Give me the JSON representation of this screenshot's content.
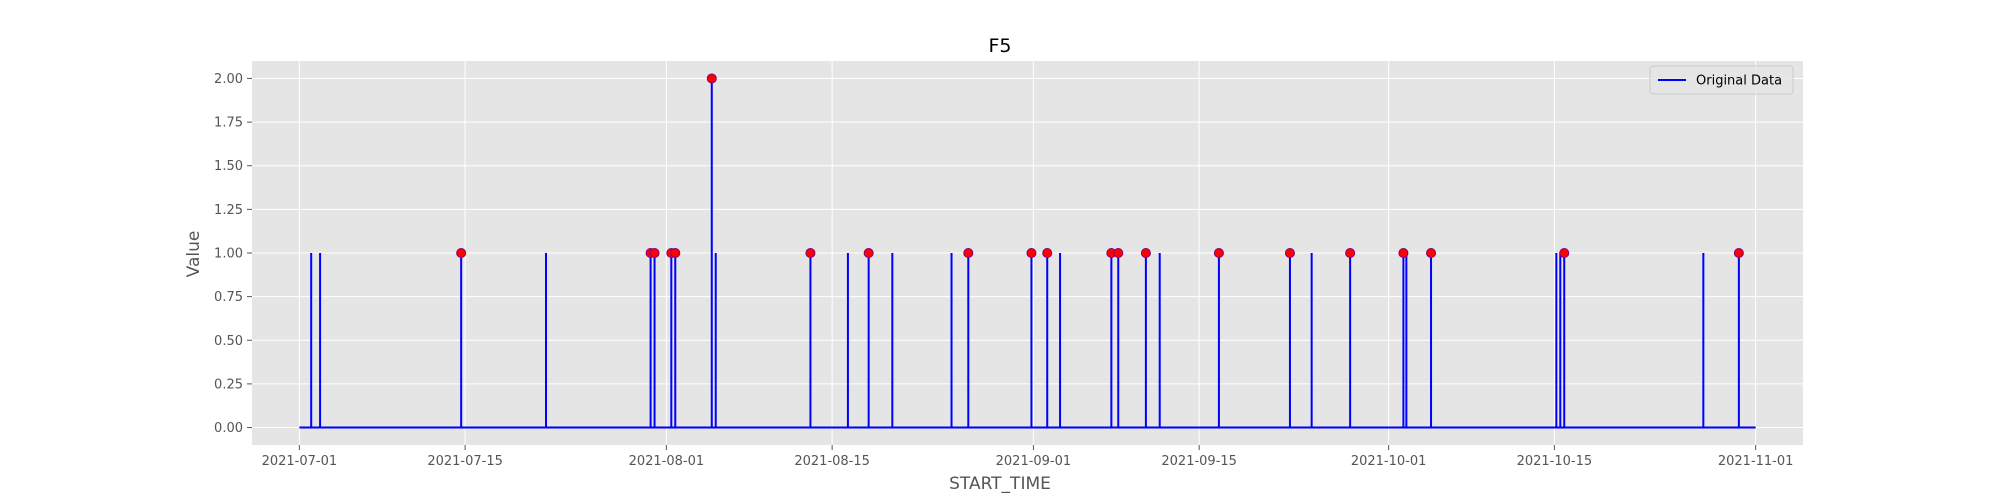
{
  "chart_data": {
    "type": "line",
    "title": "F5",
    "xlabel": "START_TIME",
    "ylabel": "Value",
    "xlim": [
      "2021-06-27",
      "2021-11-05"
    ],
    "ylim": [
      -0.1,
      2.1
    ],
    "x_ticks": [
      "2021-07-01",
      "2021-07-15",
      "2021-08-01",
      "2021-08-15",
      "2021-09-01",
      "2021-09-15",
      "2021-10-01",
      "2021-10-15",
      "2021-11-01"
    ],
    "y_ticks": [
      "0.00",
      "0.25",
      "0.50",
      "0.75",
      "1.00",
      "1.25",
      "1.50",
      "1.75",
      "2.00"
    ],
    "grid": true,
    "legend_position": "top-right",
    "series": [
      {
        "name": "Original Data",
        "color": "#0000ff",
        "baseline": 0,
        "range": [
          "2021-07-01",
          "2021-11-01"
        ],
        "spikes": [
          {
            "x": "2021-07-02",
            "y": 1
          },
          {
            "x": "2021-07-02T18:00",
            "y": 1
          },
          {
            "x": "2021-07-14T16:00",
            "y": 1
          },
          {
            "x": "2021-07-21T20:00",
            "y": 1
          },
          {
            "x": "2021-07-30T16:00",
            "y": 1
          },
          {
            "x": "2021-07-31T00:00",
            "y": 1
          },
          {
            "x": "2021-08-01T10:00",
            "y": 1
          },
          {
            "x": "2021-08-01T18:00",
            "y": 1
          },
          {
            "x": "2021-08-04T20:00",
            "y": 2
          },
          {
            "x": "2021-08-05T04:00",
            "y": 1
          },
          {
            "x": "2021-08-13T04:00",
            "y": 1
          },
          {
            "x": "2021-08-16T08:00",
            "y": 1
          },
          {
            "x": "2021-08-18T02:00",
            "y": 1
          },
          {
            "x": "2021-08-20T02:00",
            "y": 1
          },
          {
            "x": "2021-08-25T02:00",
            "y": 1
          },
          {
            "x": "2021-08-26T12:00",
            "y": 1
          },
          {
            "x": "2021-08-31T20:00",
            "y": 1
          },
          {
            "x": "2021-09-02T04:00",
            "y": 1
          },
          {
            "x": "2021-09-03T06:00",
            "y": 1
          },
          {
            "x": "2021-09-07T14:00",
            "y": 1
          },
          {
            "x": "2021-09-08T04:00",
            "y": 1
          },
          {
            "x": "2021-09-10T12:00",
            "y": 1
          },
          {
            "x": "2021-09-11T16:00",
            "y": 1
          },
          {
            "x": "2021-09-16T16:00",
            "y": 1
          },
          {
            "x": "2021-09-22T16:00",
            "y": 1
          },
          {
            "x": "2021-09-24T12:00",
            "y": 1
          },
          {
            "x": "2021-09-27T18:00",
            "y": 1
          },
          {
            "x": "2021-10-02T06:00",
            "y": 1
          },
          {
            "x": "2021-10-02T12:00",
            "y": 1
          },
          {
            "x": "2021-10-04T14:00",
            "y": 1
          },
          {
            "x": "2021-10-15T04:00",
            "y": 1
          },
          {
            "x": "2021-10-15T12:00",
            "y": 1
          },
          {
            "x": "2021-10-15T20:00",
            "y": 1
          },
          {
            "x": "2021-10-27T14:00",
            "y": 1
          },
          {
            "x": "2021-10-30T14:00",
            "y": 1
          }
        ]
      }
    ],
    "markers": {
      "color": "#ff0000",
      "edge_color": "#800080",
      "points": [
        {
          "x": "2021-07-14T16:00",
          "y": 1
        },
        {
          "x": "2021-07-30T16:00",
          "y": 1
        },
        {
          "x": "2021-07-31T00:00",
          "y": 1
        },
        {
          "x": "2021-08-01T10:00",
          "y": 1
        },
        {
          "x": "2021-08-01T18:00",
          "y": 1
        },
        {
          "x": "2021-08-04T20:00",
          "y": 2
        },
        {
          "x": "2021-08-13T04:00",
          "y": 1
        },
        {
          "x": "2021-08-18T02:00",
          "y": 1
        },
        {
          "x": "2021-08-26T12:00",
          "y": 1
        },
        {
          "x": "2021-08-31T20:00",
          "y": 1
        },
        {
          "x": "2021-09-02T04:00",
          "y": 1
        },
        {
          "x": "2021-09-07T14:00",
          "y": 1
        },
        {
          "x": "2021-09-08T04:00",
          "y": 1
        },
        {
          "x": "2021-09-10T12:00",
          "y": 1
        },
        {
          "x": "2021-09-16T16:00",
          "y": 1
        },
        {
          "x": "2021-09-22T16:00",
          "y": 1
        },
        {
          "x": "2021-09-27T18:00",
          "y": 1
        },
        {
          "x": "2021-10-02T06:00",
          "y": 1
        },
        {
          "x": "2021-10-04T14:00",
          "y": 1
        },
        {
          "x": "2021-10-15T20:00",
          "y": 1
        },
        {
          "x": "2021-10-30T14:00",
          "y": 1
        }
      ]
    },
    "colors": {
      "plot_background": "#e5e5e5",
      "grid": "#ffffff",
      "tick_text": "#555555"
    }
  }
}
